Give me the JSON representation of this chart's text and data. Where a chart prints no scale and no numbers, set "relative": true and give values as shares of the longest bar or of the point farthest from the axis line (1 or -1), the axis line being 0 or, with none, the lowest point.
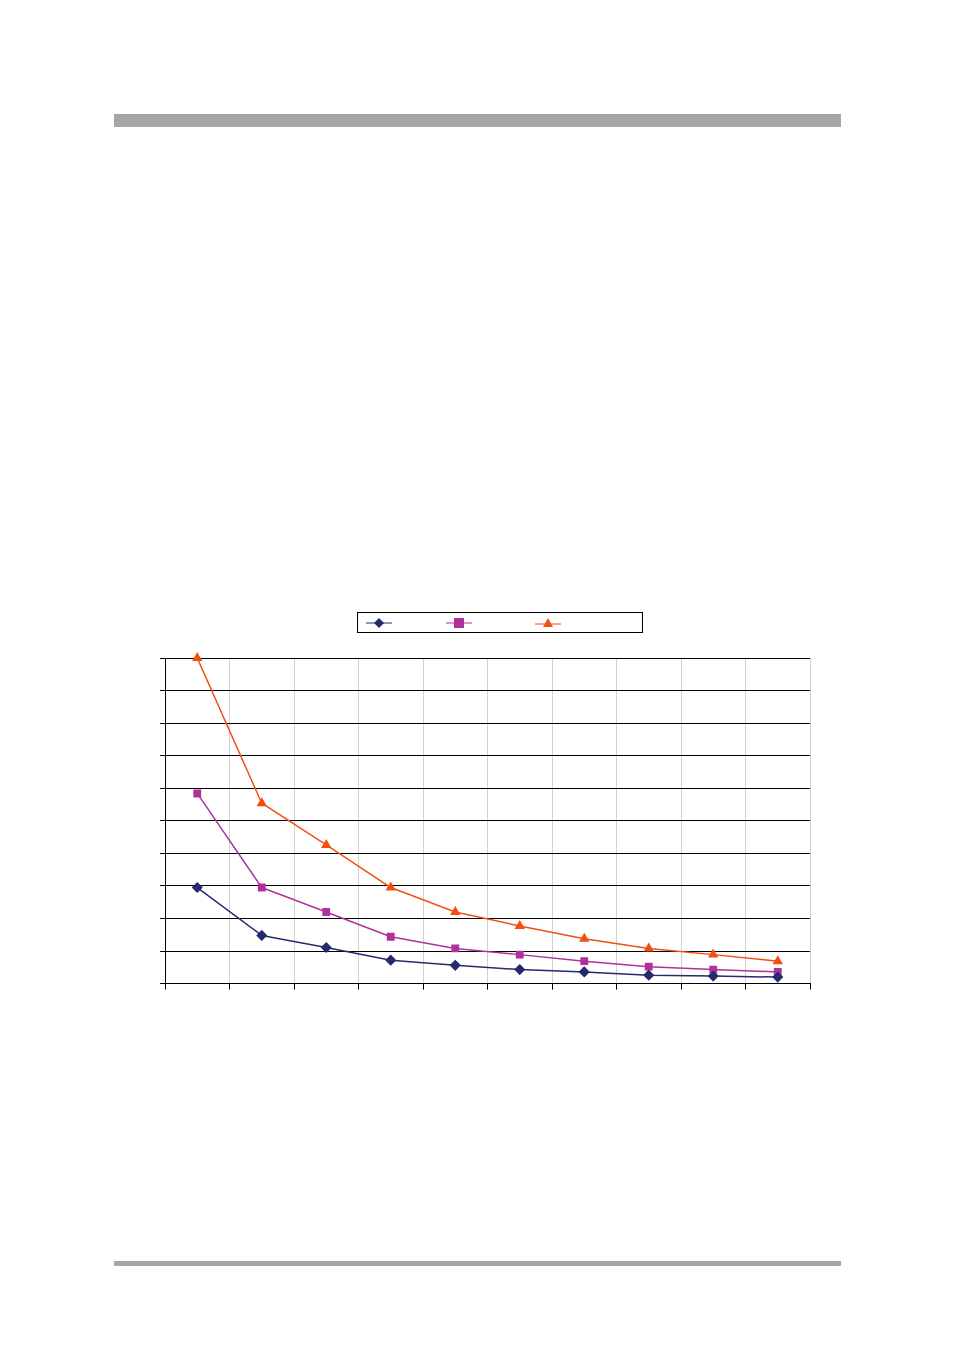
{
  "chart_data": {
    "type": "line",
    "relative": true,
    "grid": true,
    "line_style": "solid",
    "categories": [
      null,
      null,
      null,
      null,
      null,
      null,
      null,
      null,
      null,
      null
    ],
    "series": [
      {
        "color": "#262a6e",
        "marker": "diamond",
        "values": [
          0.295,
          0.148,
          0.111,
          0.072,
          0.056,
          0.043,
          0.036,
          0.026,
          0.023,
          0.02
        ]
      },
      {
        "color": "#b0309e",
        "marker": "square",
        "values": [
          0.584,
          0.295,
          0.22,
          0.144,
          0.108,
          0.089,
          0.069,
          0.052,
          0.043,
          0.036
        ]
      },
      {
        "color": "#f24f10",
        "marker": "triangle",
        "values": [
          1,
          0.554,
          0.426,
          0.295,
          0.22,
          0.177,
          0.138,
          0.108,
          0.089,
          0.069
        ]
      }
    ]
  }
}
